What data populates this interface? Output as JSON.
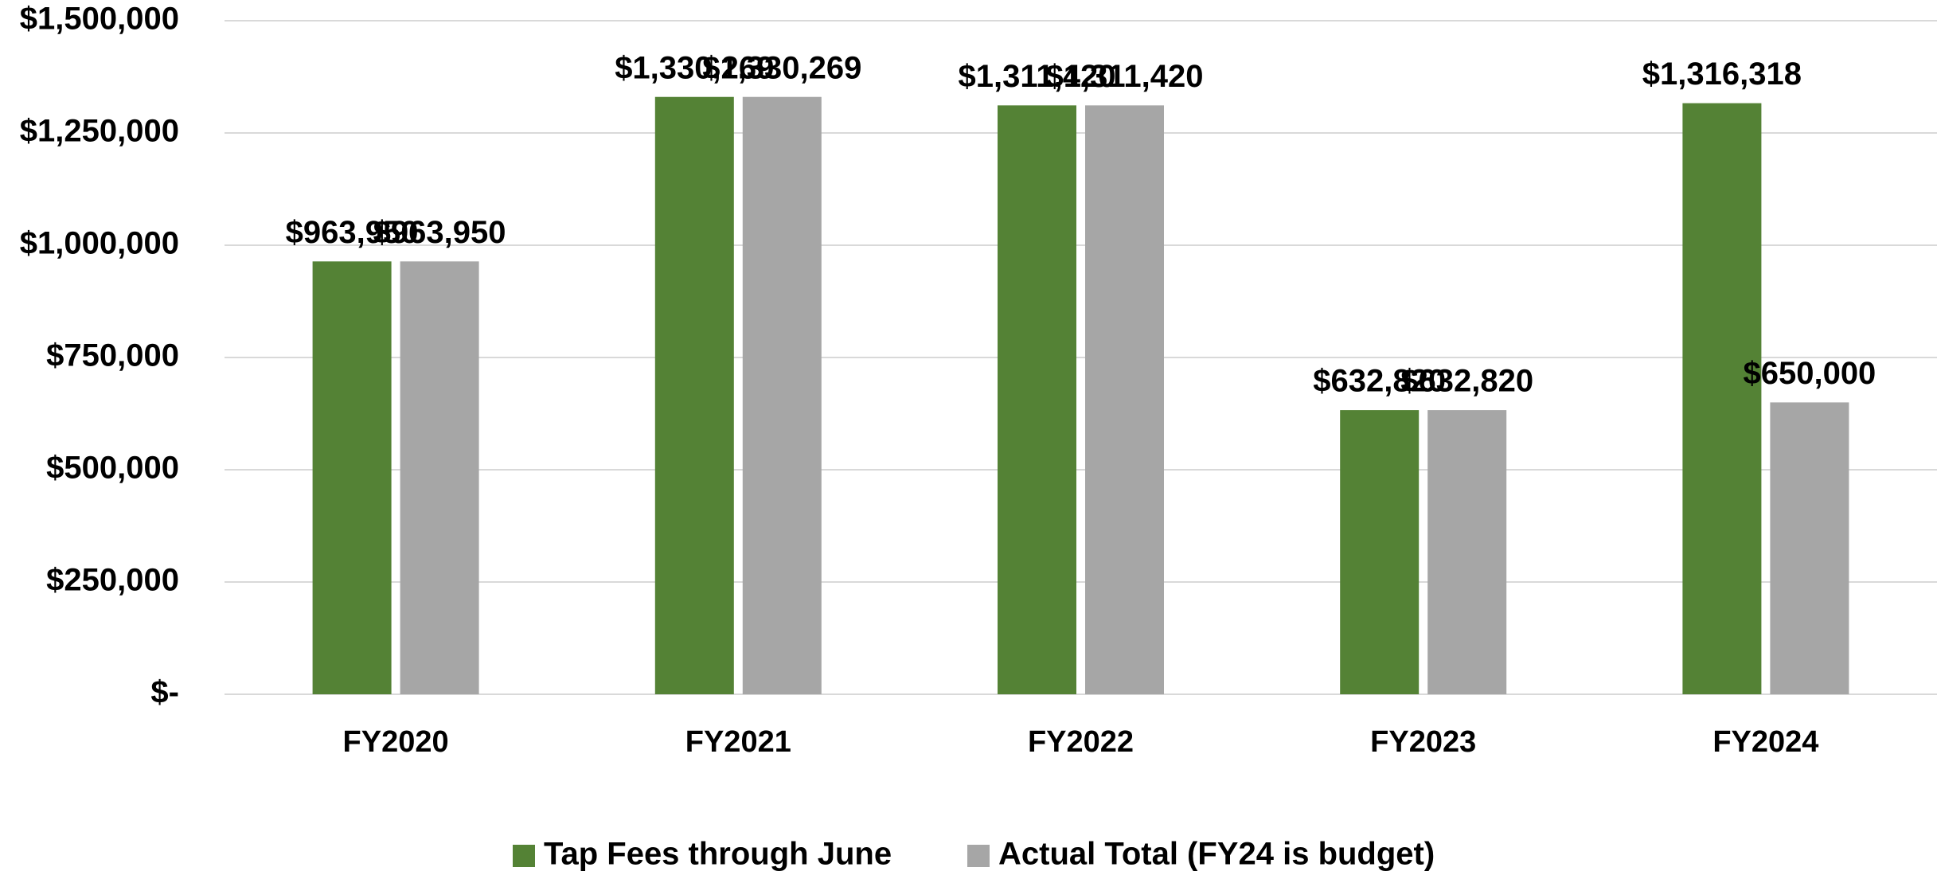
{
  "chart_data": {
    "type": "bar",
    "categories": [
      "FY2020",
      "FY2021",
      "FY2022",
      "FY2023",
      "FY2024"
    ],
    "series": [
      {
        "name": "Tap Fees through June",
        "color": "#548235",
        "values": [
          963950,
          1330269,
          1311420,
          632820,
          1316318
        ],
        "value_labels": [
          "$963,950",
          "$1,330,269",
          "$1,311,420",
          "$632,820",
          "$1,316,318"
        ]
      },
      {
        "name": "Actual Total (FY24 is budget)",
        "color": "#a6a6a6",
        "values": [
          963950,
          1330269,
          1311420,
          632820,
          650000
        ],
        "value_labels": [
          "$963,950",
          "$1,330,269",
          "$1,311,420",
          "$632,820",
          "$650,000"
        ]
      }
    ],
    "ylim": [
      0,
      1500000
    ],
    "yticks": [
      {
        "value": 0,
        "label": "$-"
      },
      {
        "value": 250000,
        "label": "$250,000"
      },
      {
        "value": 500000,
        "label": "$500,000"
      },
      {
        "value": 750000,
        "label": "$750,000"
      },
      {
        "value": 1000000,
        "label": "$1,000,000"
      },
      {
        "value": 1250000,
        "label": "$1,250,000"
      },
      {
        "value": 1500000,
        "label": "$1,500,000"
      }
    ],
    "grid": true,
    "legend": "bottom"
  }
}
